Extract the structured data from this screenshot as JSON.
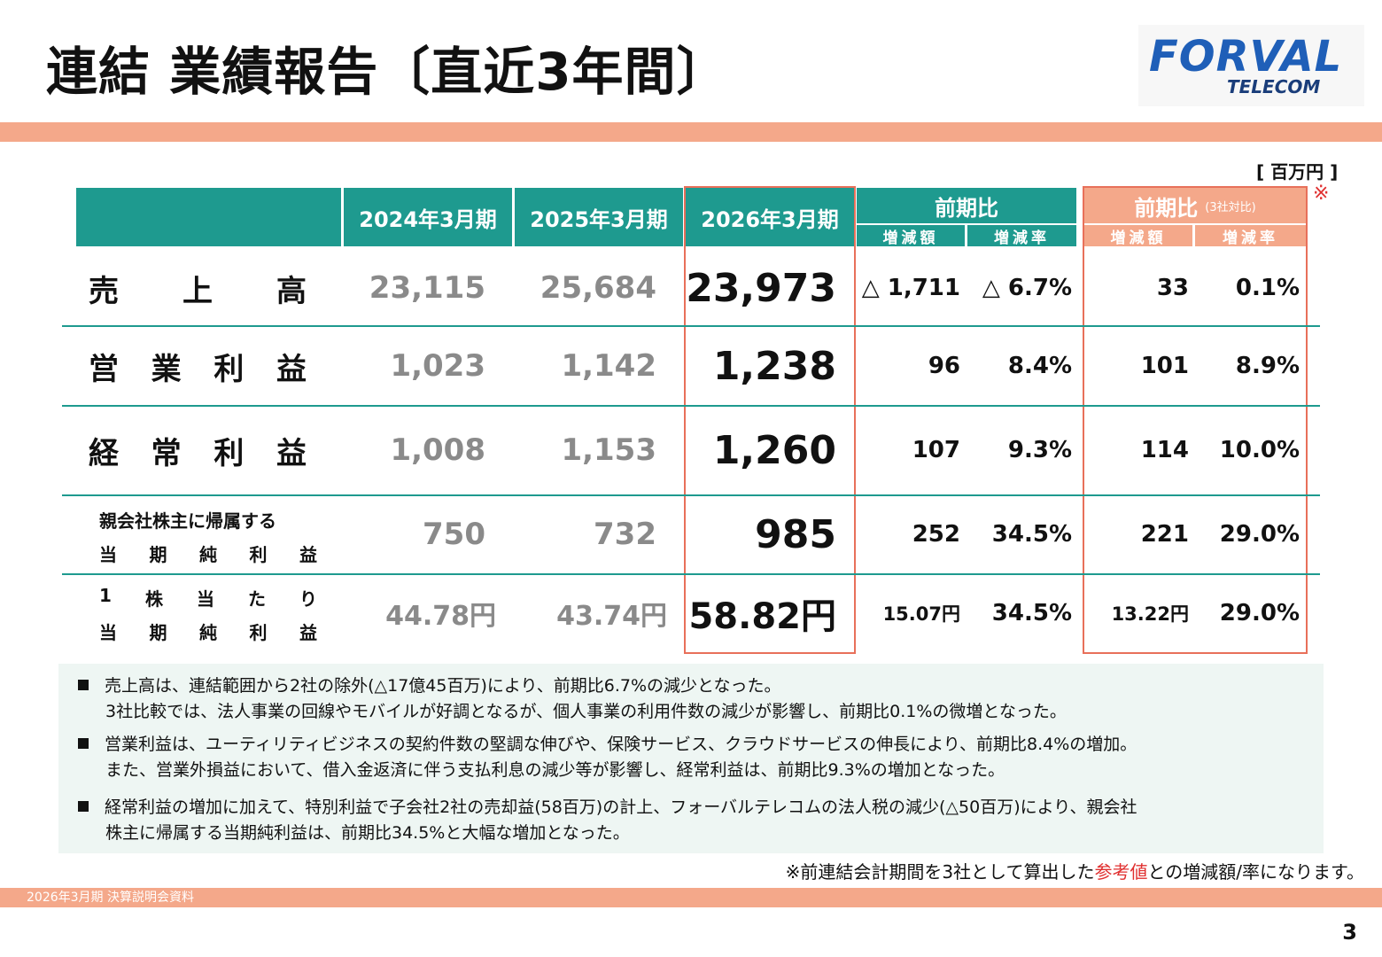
{
  "title": "連結 業績報告〔直近3年間〕",
  "logo": {
    "main": "FORVAL",
    "sub": "TELECOM"
  },
  "unit": "[ 百万円 ]",
  "mark": "※",
  "header": {
    "col1": "2024年3月期",
    "col2": "2025年3月期",
    "col3": "2026年3月期",
    "yoy": "前期比",
    "yoy3": "前期比",
    "yoy3_note": "(3社対比)",
    "sub_amount": "増減額",
    "sub_rate": "増減率"
  },
  "rows": [
    {
      "label": [
        "売",
        "上",
        "高"
      ],
      "v2024": "23,115",
      "v2025": "25,684",
      "v2026": "23,973",
      "amt": "△ 1,711",
      "rate": "△ 6.7%",
      "amt3": "33",
      "rate3": "0.1%"
    },
    {
      "label": [
        "営",
        "業",
        "利",
        "益"
      ],
      "v2024": "1,023",
      "v2025": "1,142",
      "v2026": "1,238",
      "amt": "96",
      "rate": "8.4%",
      "amt3": "101",
      "rate3": "8.9%"
    },
    {
      "label": [
        "経",
        "常",
        "利",
        "益"
      ],
      "v2024": "1,008",
      "v2025": "1,153",
      "v2026": "1,260",
      "amt": "107",
      "rate": "9.3%",
      "amt3": "114",
      "rate3": "10.0%"
    },
    {
      "label_line1": "親会社株主に帰属する",
      "label_line2": [
        "当",
        "期",
        "純",
        "利",
        "益"
      ],
      "v2024": "750",
      "v2025": "732",
      "v2026": "985",
      "amt": "252",
      "rate": "34.5%",
      "amt3": "221",
      "rate3": "29.0%"
    },
    {
      "label_line1": [
        "1",
        "株",
        "当",
        "た",
        "り"
      ],
      "label_line2": [
        "当",
        "期",
        "純",
        "利",
        "益"
      ],
      "v2024": "44.78円",
      "v2025": "43.74円",
      "v2026": "58.82円",
      "amt": "15.07円",
      "rate": "34.5%",
      "amt3": "13.22円",
      "rate3": "29.0%"
    }
  ],
  "notes": [
    {
      "line1": "売上高は、連結範囲から2社の除外(△17億45百万)により、前期比6.7%の減少となった。",
      "line2": "3社比較では、法人事業の回線やモバイルが好調となるが、個人事業の利用件数の減少が影響し、前期比0.1%の微増となった。"
    },
    {
      "line1": "営業利益は、ユーティリティビジネスの契約件数の堅調な伸びや、保険サービス、クラウドサービスの伸長により、前期比8.4%の増加。",
      "line2": "また、営業外損益において、借入金返済に伴う支払利息の減少等が影響し、経常利益は、前期比9.3%の増加となった。"
    },
    {
      "line1": "経常利益の増加に加えて、特別利益で子会社2社の売却益(58百万)の計上、フォーバルテレコムの法人税の減少(△50百万)により、親会社",
      "line2": "株主に帰属する当期純利益は、前期比34.5%と大幅な増加となった。"
    }
  ],
  "footnote": {
    "pre": "※前連結会計期間を3社として算出した",
    "red": "参考値",
    "post": "との増減額/率になります。"
  },
  "footer_label": "2026年3月期 決算説明会資料",
  "page_number": "3",
  "colors": {
    "teal": "#1e9a8f",
    "salmon": "#f4a88a",
    "highlight_border": "#e8705a",
    "red": "#e03030"
  }
}
